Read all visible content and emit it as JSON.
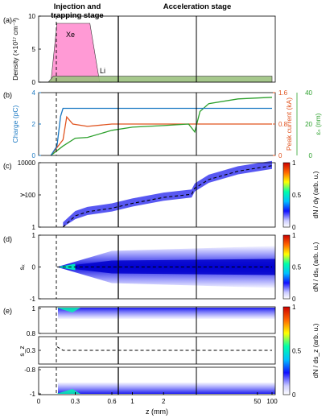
{
  "chart_data": [
    {
      "panel": "(a)",
      "type": "area",
      "stage_labels": [
        "Injection and trapping stage",
        "Acceleration stage"
      ],
      "ylabel": "Density (×10¹⁷ cm⁻³)",
      "ylim": [
        0,
        10
      ],
      "yticks": [
        "0",
        "5",
        "10"
      ],
      "annotations": [
        "Xe",
        "Li"
      ],
      "series": [
        {
          "name": "Xe",
          "color": "#ff9ad5",
          "x": [
            0.0,
            0.1,
            0.15,
            0.42,
            0.5,
            0.6
          ],
          "values": [
            0,
            0,
            8.9,
            8.9,
            0,
            0
          ]
        },
        {
          "name": "Li",
          "color": "#9cc27f",
          "x": [
            0.0,
            0.08,
            0.12,
            0.6,
            3.0,
            100.0
          ],
          "values": [
            0,
            0,
            0.9,
            0.9,
            0.9,
            0.9
          ]
        }
      ]
    },
    {
      "panel": "(b)",
      "type": "line",
      "ylabel_left": "Charge (pC)",
      "ylim_left": [
        0,
        4
      ],
      "yticks_left": [
        "0",
        "2",
        "4"
      ],
      "ylabel_right1": "Peak current (kA)",
      "ylim_right1": [
        0,
        1.6
      ],
      "yticks_right1": [
        "0",
        "0.8",
        "1.6"
      ],
      "ylabel_right2": "εₙ (nm)",
      "ylim_right2": [
        0,
        40
      ],
      "yticks_right2": [
        "0",
        "20",
        "40"
      ],
      "series": [
        {
          "name": "Charge",
          "color": "#1a78c2",
          "x": [
            0.1,
            0.15,
            0.18,
            0.2,
            0.6,
            3.0,
            100.0
          ],
          "values": [
            0,
            0.6,
            2.5,
            3.0,
            3.0,
            3.0,
            3.0
          ]
        },
        {
          "name": "Peak current",
          "color": "#e0531f",
          "x": [
            0.1,
            0.2,
            0.23,
            0.28,
            0.4,
            0.6,
            1.0,
            3.0,
            100.0
          ],
          "values": [
            0,
            0.4,
            0.98,
            0.8,
            0.74,
            0.8,
            0.8,
            0.8,
            0.8
          ]
        },
        {
          "name": "Emittance",
          "color": "#2ca02c",
          "x": [
            0.1,
            0.2,
            0.3,
            0.4,
            0.6,
            1.0,
            2.0,
            2.8,
            3.0,
            3.3,
            5.0,
            20.0,
            100.0
          ],
          "values": [
            0,
            6,
            11,
            11.5,
            16,
            18,
            19,
            20,
            15,
            28,
            33,
            36,
            37
          ]
        }
      ]
    },
    {
      "panel": "(c)",
      "type": "heatmap",
      "ylabel": "γ",
      "yscale": "log",
      "ylim": [
        1,
        10000
      ],
      "yticks": [
        "1",
        "100",
        "10000"
      ],
      "colorbar_label": "dN / dγ (arb. u.)",
      "colorbar_ticks": [
        "0",
        "0.5",
        "1"
      ],
      "mean_curve": {
        "x": [
          0.2,
          0.3,
          0.4,
          0.6,
          1.0,
          2.0,
          2.9,
          3.0,
          5.0,
          20.0,
          100.0
        ],
        "values": [
          1,
          5,
          9,
          15,
          30,
          70,
          110,
          260,
          900,
          3000,
          6500
        ]
      }
    },
    {
      "panel": "(d)",
      "type": "heatmap",
      "ylabel": "sₓ",
      "ylim": [
        -1,
        1
      ],
      "yticks": [
        "-1",
        "0",
        "1"
      ],
      "colorbar_label": "dN / dsₓ (arb. u.)",
      "colorbar_ticks": [
        "0",
        "0.5",
        "1"
      ],
      "mean_curve": {
        "x": [
          0.15,
          100.0
        ],
        "values": [
          0,
          0
        ]
      }
    },
    {
      "panel": "(e)",
      "type": "heatmap",
      "ylabel": "s_z",
      "yticks_top": [
        "0.8",
        "1"
      ],
      "yticks_mid": [
        "0.3"
      ],
      "yticks_bottom": [
        "-1",
        "-0.8"
      ],
      "colorbar_label": "dN / ds_z (arb. u.)",
      "colorbar_ticks": [
        "0",
        "0.5",
        "1"
      ],
      "mean_curve": {
        "x": [
          0.15,
          0.2,
          0.3,
          100.0
        ],
        "values": [
          0.34,
          0.3,
          0.3,
          0.3
        ]
      }
    }
  ],
  "xaxis": {
    "label": "z (mm)",
    "segment_ticks": [
      {
        "segment": 0,
        "ticks": [
          "0",
          "0.3",
          "0.6"
        ]
      },
      {
        "segment": 1,
        "ticks": [
          "1",
          "2"
        ]
      },
      {
        "segment": 2,
        "ticks": [
          "50",
          "100"
        ]
      }
    ]
  },
  "colors": {
    "dashed_line": "#000000",
    "heatmap_low": "#ffffff",
    "heatmap_high": "#0000dd"
  }
}
